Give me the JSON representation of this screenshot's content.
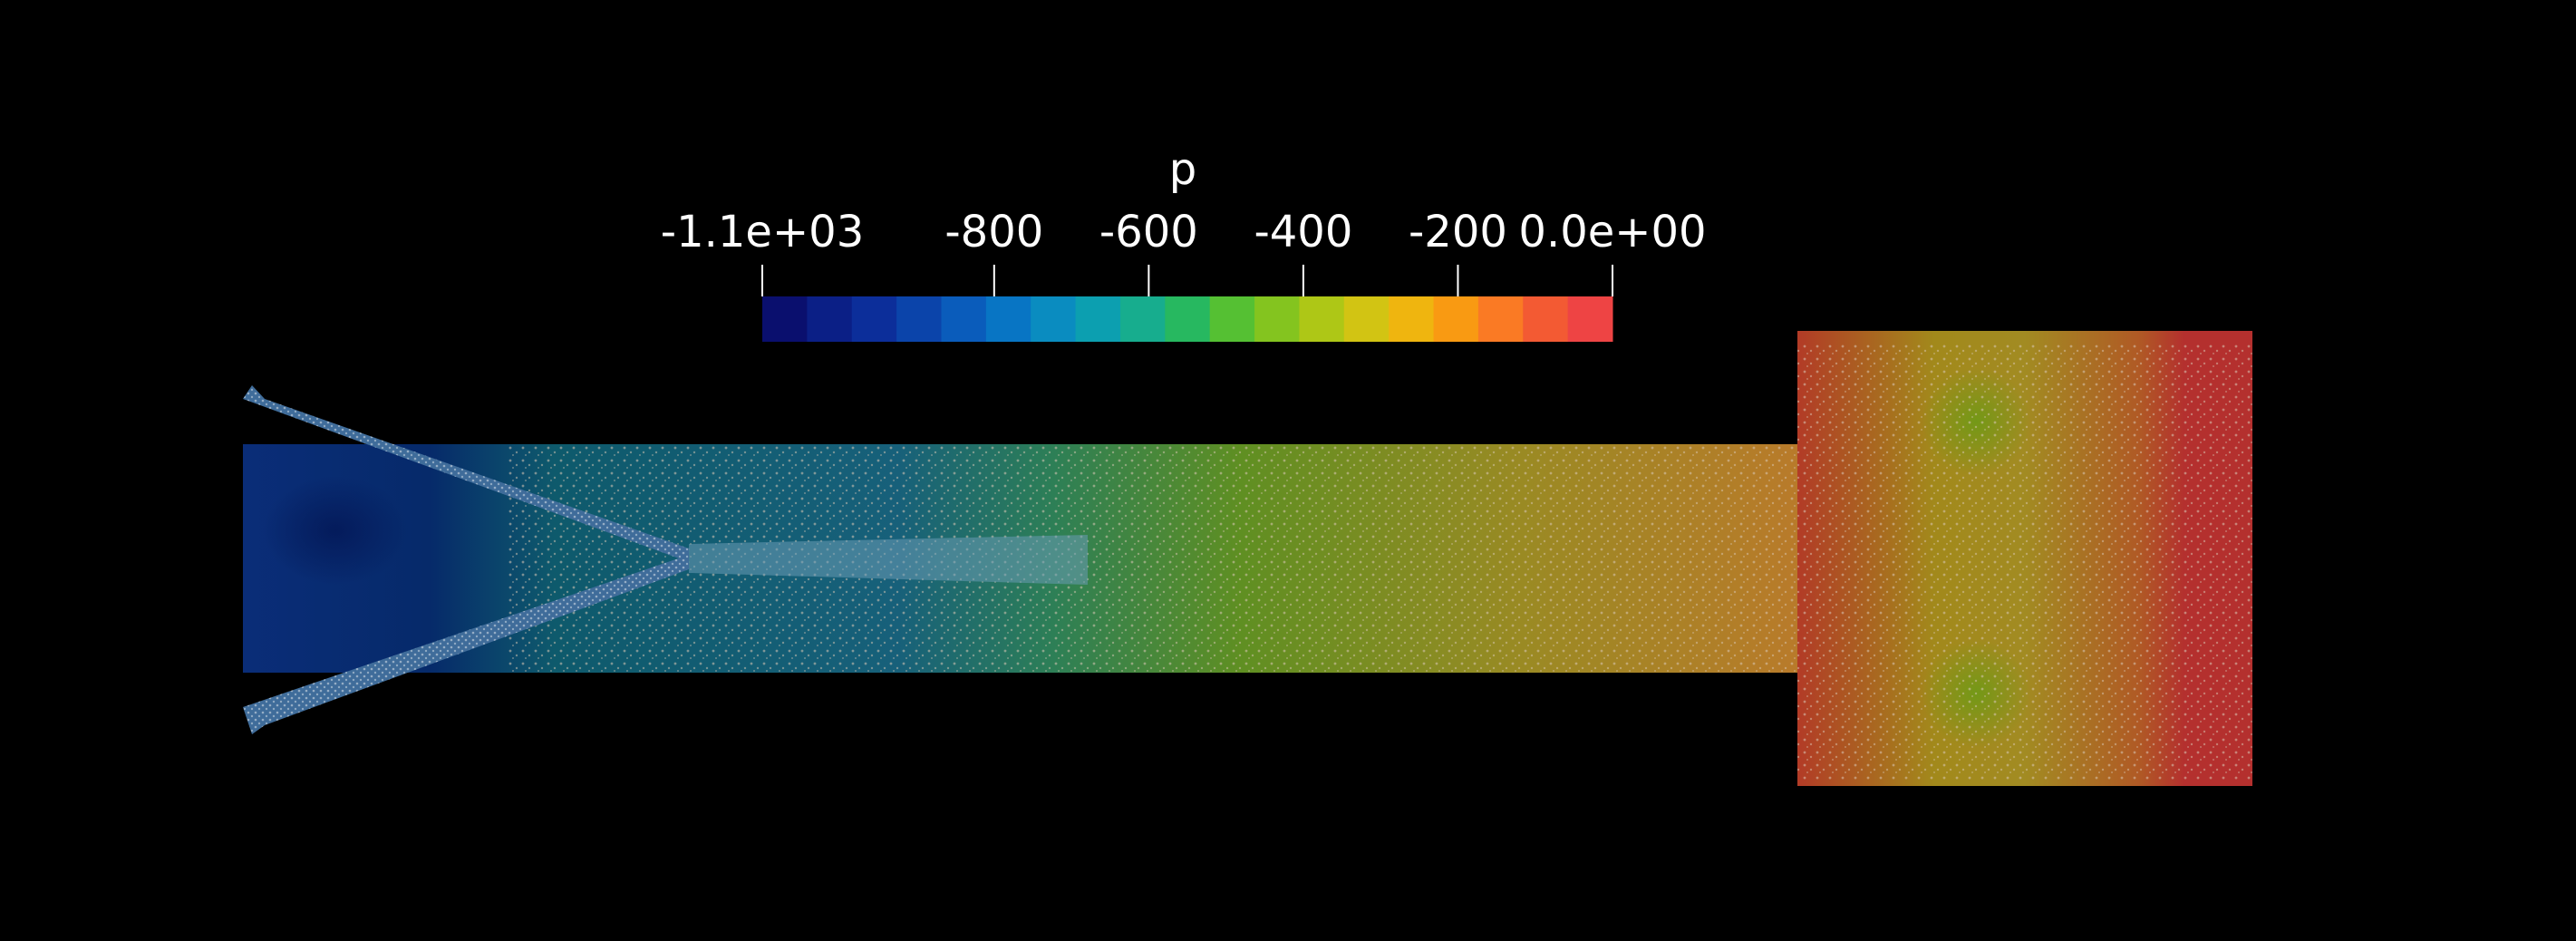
{
  "colorbar": {
    "title": "p",
    "min_label": "-1.1e+03",
    "max_label": "0.0e+00",
    "ticks": [
      "-800",
      "-600",
      "-400",
      "-200"
    ],
    "tick_values": [
      -800,
      -600,
      -400,
      -200
    ],
    "range": [
      -1100,
      0
    ],
    "colors": [
      "#0a0f6e",
      "#0b1f86",
      "#0c2e9a",
      "#0b44aa",
      "#0a5cbb",
      "#0875c4",
      "#0a8cc0",
      "#0c9fb0",
      "#17ad8e",
      "#27b860",
      "#55c033",
      "#84c41f",
      "#aec716",
      "#d2c413",
      "#efb50f",
      "#f99a12",
      "#fa7a24",
      "#f35a33",
      "#ee4444"
    ]
  },
  "field_colors": {
    "low": "#062a6a",
    "mid": "#0e5a6c",
    "midgreen": "#3f8a3e",
    "high": "#9a8a23",
    "outlet": "#b5302e",
    "particles": "#d9c7b4"
  }
}
